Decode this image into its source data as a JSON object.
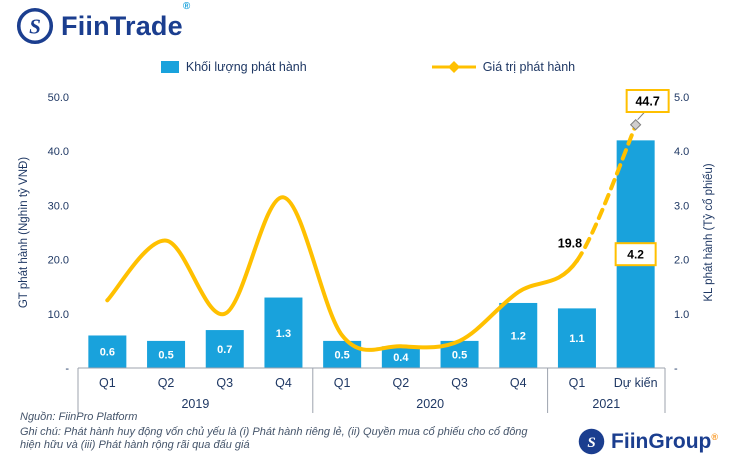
{
  "header": {
    "brand": "FiinTrade",
    "registered": "®"
  },
  "legend": {
    "items": [
      {
        "label": "Khối lượng phát hành",
        "swatch": "bar",
        "color": "#19A2DC"
      },
      {
        "label": "Giá trị phát hành",
        "swatch": "line",
        "color": "#FFC000"
      }
    ]
  },
  "chart_data": {
    "type": "combo-bar-line",
    "categories": [
      "Q1",
      "Q2",
      "Q3",
      "Q4",
      "Q1",
      "Q2",
      "Q3",
      "Q4",
      "Q1",
      "Dự kiến"
    ],
    "year_groups": [
      {
        "label": "2019",
        "count": 4
      },
      {
        "label": "2020",
        "count": 4
      },
      {
        "label": "2021",
        "count": 2
      }
    ],
    "bar_series": {
      "name": "Khối lượng phát hành",
      "axis": "right",
      "color": "#19A2DC",
      "values": [
        0.6,
        0.5,
        0.7,
        1.3,
        0.5,
        0.4,
        0.5,
        1.2,
        1.1,
        4.2
      ],
      "labels": [
        "0.6",
        "0.5",
        "0.7",
        "1.3",
        "0.5",
        "0.4",
        "0.5",
        "1.2",
        "1.1",
        "4.2"
      ],
      "highlight_last": true
    },
    "line_series": {
      "name": "Giá trị phát hành",
      "axis": "left",
      "color": "#FFC000",
      "values": [
        12.5,
        23.5,
        10.0,
        31.5,
        6.0,
        4.0,
        5.0,
        14.0,
        19.8,
        44.7
      ],
      "dashed_from_index": 8,
      "point_labels": [
        {
          "index": 8,
          "text": "19.8",
          "style": "plain"
        },
        {
          "index": 9,
          "text": "44.7",
          "style": "boxed"
        }
      ]
    },
    "left_axis": {
      "title": "GT phát hành (Nghìn tỷ VNĐ)",
      "max": 50,
      "ticks": [
        "50.0",
        "40.0",
        "30.0",
        "20.0",
        "10.0",
        "-"
      ]
    },
    "right_axis": {
      "title": "KL phát hành (Tỷ cổ phiếu)",
      "max": 5,
      "ticks": [
        "5.0",
        "4.0",
        "3.0",
        "2.0",
        "1.0",
        "-"
      ]
    }
  },
  "footer": {
    "source": "Nguồn: FiinPro Platform",
    "note": "Ghi chú: Phát hành huy động vốn chủ yếu là  (i) Phát hành riêng lẻ, (ii) Quyền mua cổ phiếu cho cổ đông hiện hữu và (iii) Phát hành rộng rãi qua đấu giá",
    "brand": "FiinGroup",
    "registered": "®"
  },
  "colors": {
    "brand_navy": "#1B3E8F",
    "text_navy": "#1F3864",
    "bar_blue": "#19A2DC",
    "line_gold": "#FFC000",
    "note_gray": "#44546A",
    "fiingroup_orange": "#F7941D"
  }
}
